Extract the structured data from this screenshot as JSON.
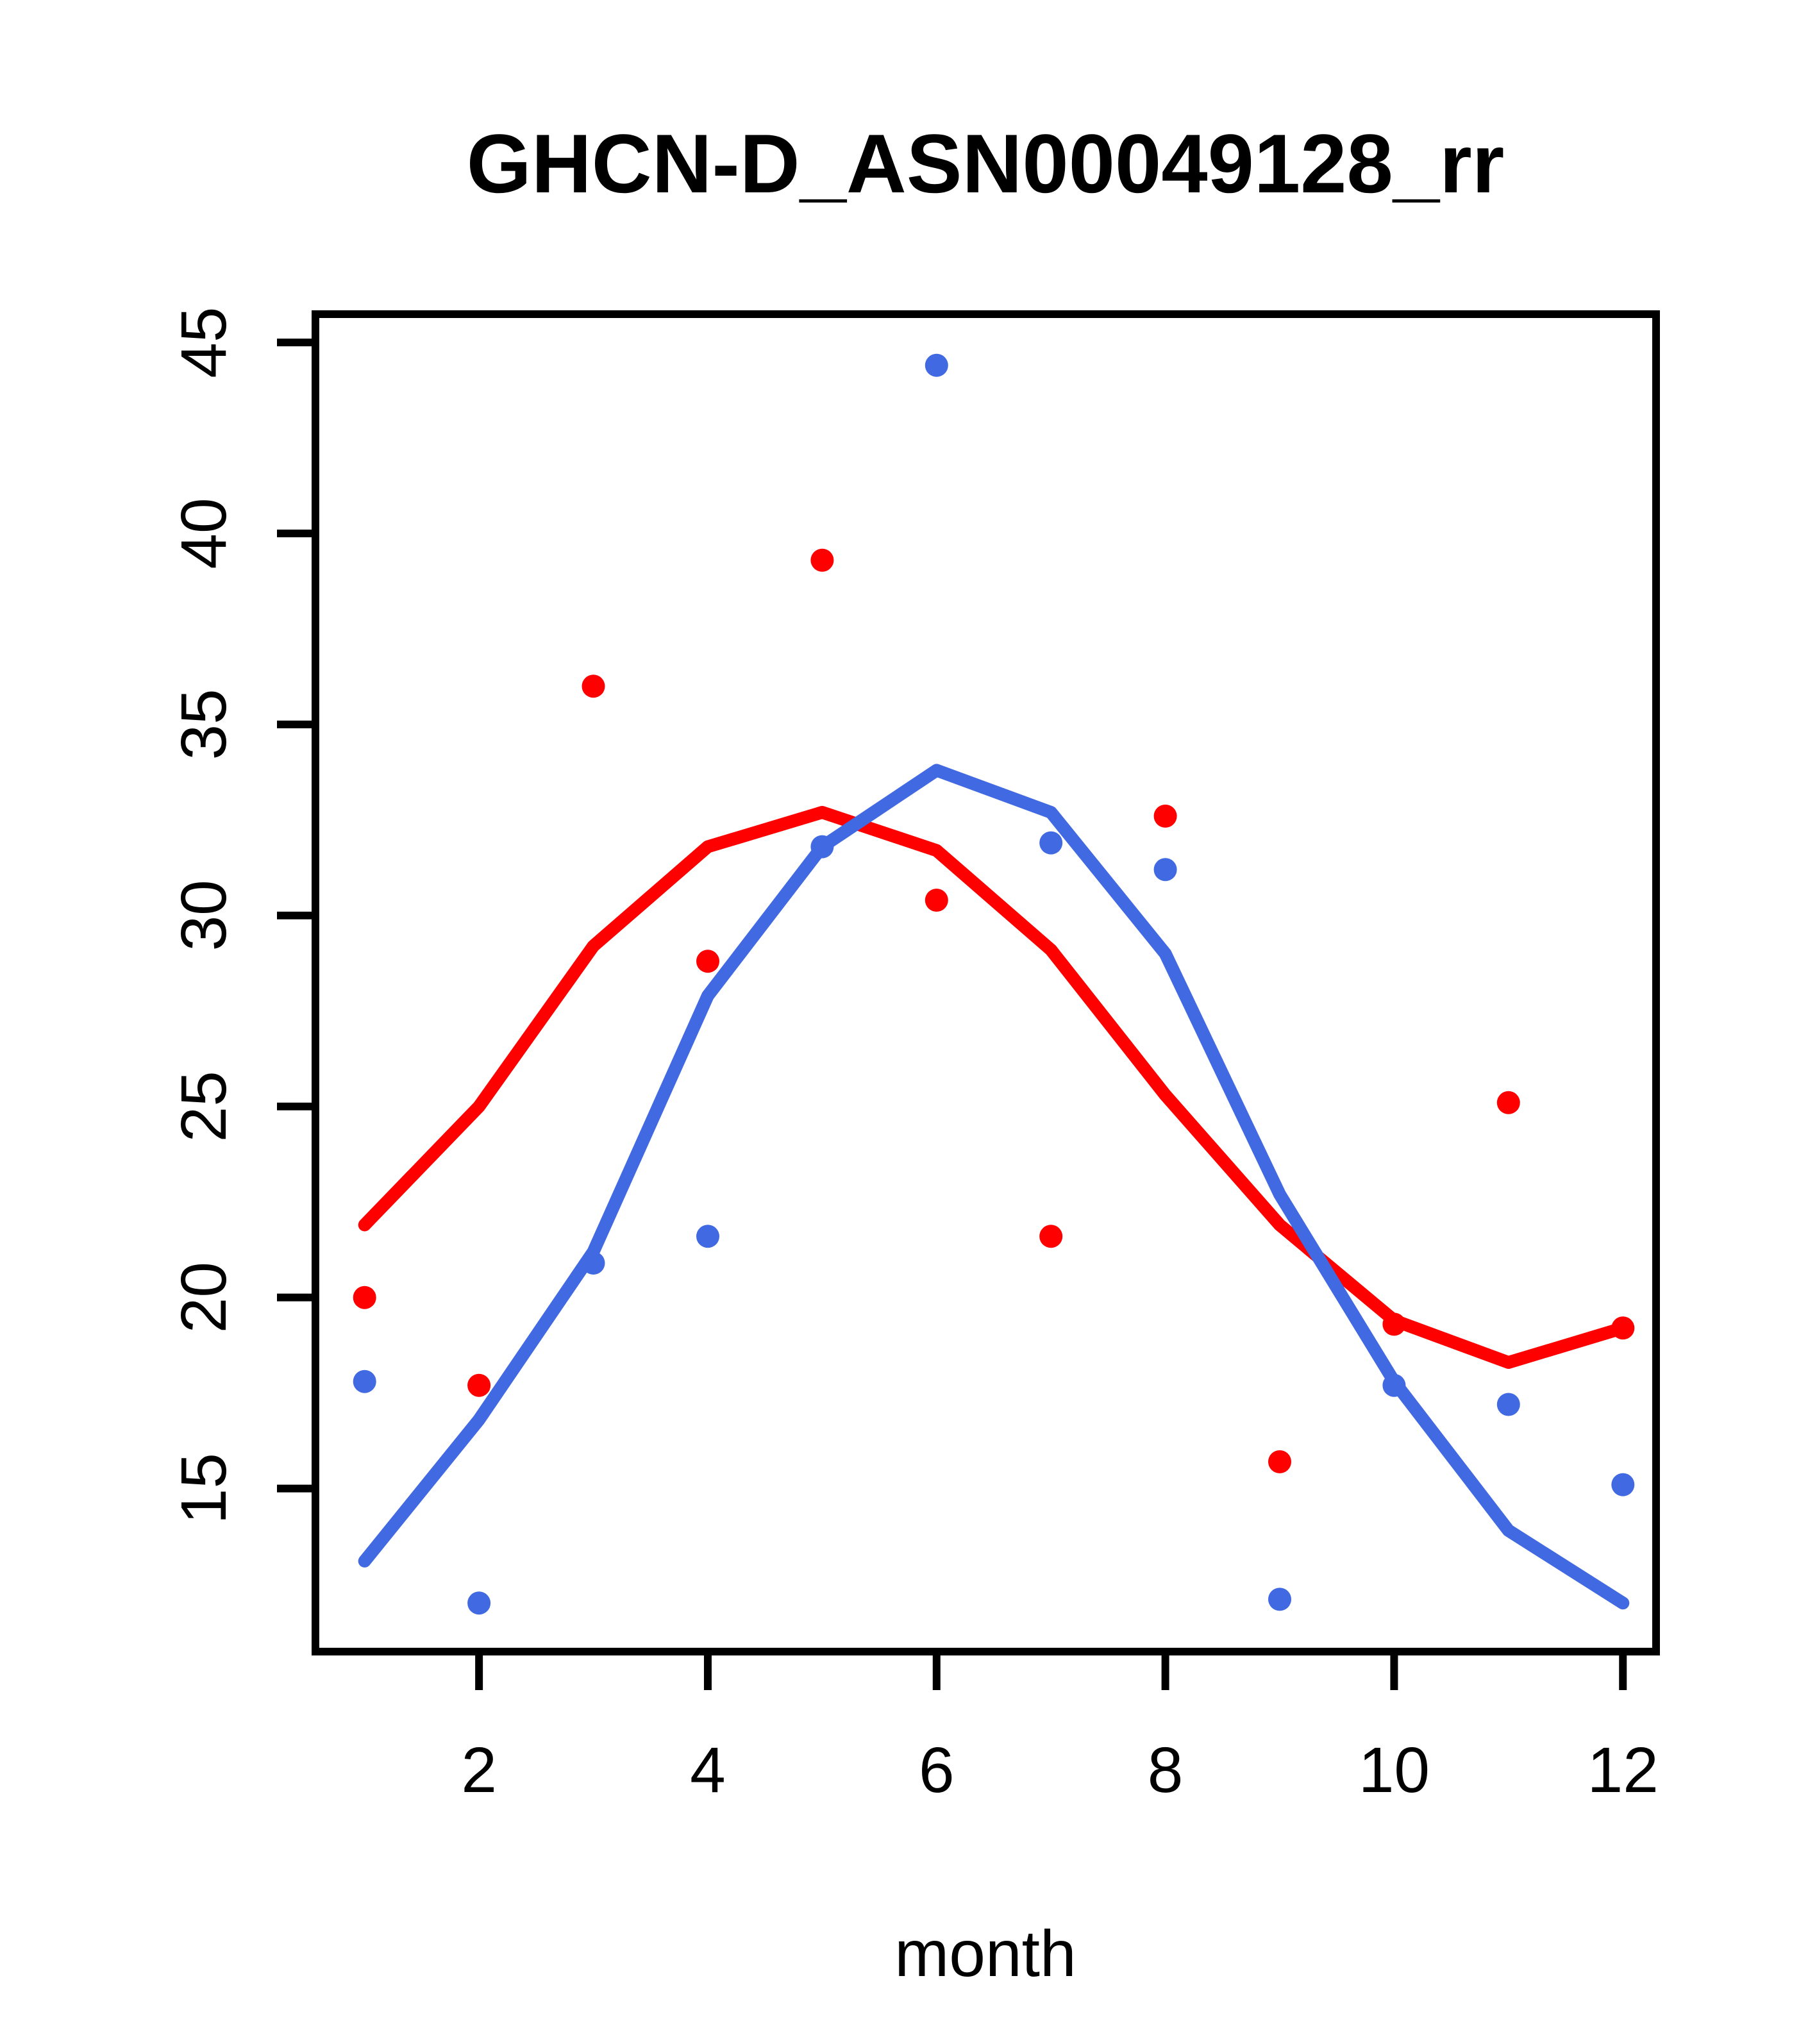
{
  "chart_data": {
    "type": "scatter",
    "title": "GHCN-D_ASN00049128_rr",
    "xlabel": "month",
    "ylabel": "",
    "grid": false,
    "legend": "none",
    "xlim": [
      0.57,
      12.29
    ],
    "ylim": [
      10.73,
      45.74
    ],
    "x_ticks": {
      "values": [
        2,
        4,
        6,
        8,
        10,
        12
      ],
      "labels": [
        "2",
        "4",
        "6",
        "8",
        "10",
        "12"
      ]
    },
    "y_ticks": {
      "values": [
        15,
        20,
        25,
        30,
        35,
        40,
        45
      ],
      "labels": [
        "15",
        "20",
        "25",
        "30",
        "35",
        "40",
        "45"
      ]
    },
    "months": [
      1,
      2,
      3,
      4,
      5,
      6,
      7,
      8,
      9,
      10,
      11,
      12
    ],
    "series": [
      {
        "name": "red-line",
        "kind": "line",
        "color": "#ff0000",
        "values": [
          21.9,
          25.0,
          29.2,
          31.8,
          32.7,
          31.7,
          29.1,
          25.3,
          21.9,
          19.4,
          18.3,
          19.2
        ]
      },
      {
        "name": "blue-line",
        "kind": "line",
        "color": "#4169e1",
        "values": [
          13.1,
          16.8,
          21.2,
          27.9,
          31.8,
          33.8,
          32.7,
          29.0,
          22.7,
          17.8,
          13.9,
          12.0
        ]
      },
      {
        "name": "red-points",
        "kind": "points",
        "color": "#ff0000",
        "values": [
          20.0,
          17.7,
          36.0,
          28.8,
          39.3,
          30.4,
          21.6,
          32.6,
          15.7,
          19.3,
          25.1,
          19.2
        ]
      },
      {
        "name": "blue-points",
        "kind": "points",
        "color": "#4169e1",
        "values": [
          17.8,
          12.0,
          20.9,
          21.6,
          31.8,
          44.4,
          31.9,
          31.2,
          12.1,
          17.7,
          17.2,
          15.1
        ]
      }
    ],
    "colors": {
      "red": "#ff0000",
      "blue": "#4169e1",
      "axis": "#000000",
      "background": "#ffffff"
    }
  }
}
